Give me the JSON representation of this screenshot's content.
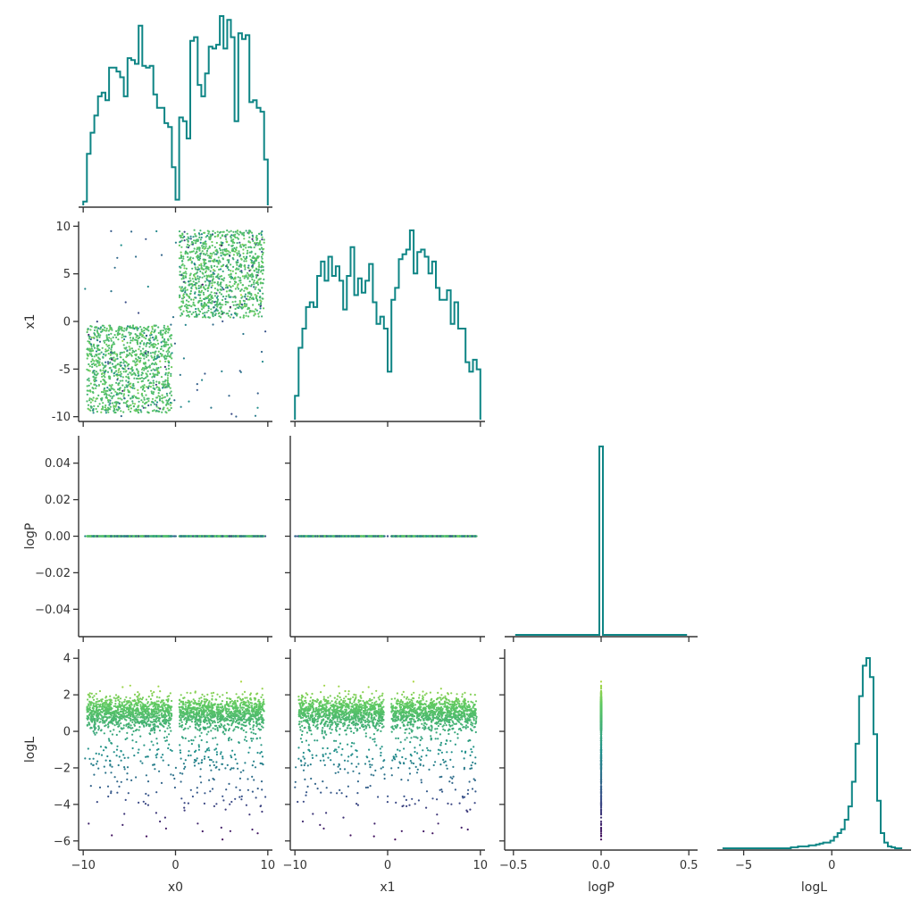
{
  "chart_data": {
    "type": "corner_plot",
    "variables": [
      "x0",
      "x1",
      "logP",
      "logL"
    ],
    "colors": {
      "histogram": "#0e8585",
      "colormap": [
        "#440154",
        "#3b528b",
        "#21918c",
        "#5ec962",
        "#fde725"
      ],
      "axis": "#333333"
    },
    "panels": [
      {
        "id": "hist-x0",
        "row": 0,
        "col": 0,
        "type": "hist",
        "variable": "x0",
        "xlim": [
          -10.5,
          10.5
        ],
        "xticks": [],
        "yticks": [],
        "bins": {
          "edges_range": [
            -10,
            10
          ],
          "count": 50,
          "heights": [
            0.02,
            0.27,
            0.38,
            0.47,
            0.57,
            0.59,
            0.55,
            0.72,
            0.72,
            0.7,
            0.67,
            0.57,
            0.77,
            0.76,
            0.74,
            0.94,
            0.73,
            0.72,
            0.73,
            0.58,
            0.51,
            0.51,
            0.43,
            0.41,
            0.2,
            0.03,
            0.46,
            0.44,
            0.35,
            0.86,
            0.88,
            0.63,
            0.57,
            0.69,
            0.83,
            0.82,
            0.84,
            0.99,
            0.82,
            0.97,
            0.88,
            0.44,
            0.9,
            0.87,
            0.89,
            0.54,
            0.55,
            0.51,
            0.49,
            0.24
          ]
        }
      },
      {
        "id": "scatter-x0-x1",
        "row": 1,
        "col": 0,
        "type": "scatter",
        "x": "x0",
        "y": "x1",
        "xlim": [
          -10.5,
          10.5
        ],
        "ylim": [
          -10.5,
          10.5
        ],
        "xticks": [],
        "yticks": [
          "-10",
          "-5",
          "0",
          "5",
          "10"
        ],
        "ylabel": "x1",
        "clusters": [
          {
            "xrange": [
              -9.6,
              -0.4
            ],
            "yrange": [
              -9.6,
              -0.4
            ],
            "n": 1100
          },
          {
            "xrange": [
              0.4,
              9.6
            ],
            "yrange": [
              0.4,
              9.6
            ],
            "n": 1100
          }
        ],
        "outliers": 70
      },
      {
        "id": "hist-x1",
        "row": 1,
        "col": 1,
        "type": "hist",
        "variable": "x1",
        "xlim": [
          -10.5,
          10.5
        ],
        "xticks": [],
        "yticks": [],
        "bins": {
          "edges_range": [
            -10,
            10
          ],
          "count": 50,
          "heights": [
            0.1,
            0.3,
            0.38,
            0.47,
            0.49,
            0.47,
            0.6,
            0.66,
            0.58,
            0.68,
            0.6,
            0.64,
            0.58,
            0.46,
            0.6,
            0.72,
            0.52,
            0.59,
            0.53,
            0.58,
            0.65,
            0.49,
            0.4,
            0.43,
            0.38,
            0.2,
            0.5,
            0.55,
            0.67,
            0.69,
            0.71,
            0.79,
            0.61,
            0.7,
            0.71,
            0.68,
            0.61,
            0.66,
            0.55,
            0.5,
            0.5,
            0.54,
            0.4,
            0.49,
            0.38,
            0.38,
            0.24,
            0.2,
            0.25,
            0.21
          ]
        }
      },
      {
        "id": "scatter-x0-logP",
        "row": 2,
        "col": 0,
        "type": "scatter",
        "x": "x0",
        "y": "logP",
        "xlim": [
          -10.5,
          10.5
        ],
        "ylim": [
          -0.055,
          0.055
        ],
        "xticks": [],
        "yticks": [
          "−0.04",
          "−0.02",
          "0.00",
          "0.02",
          "0.04"
        ],
        "ylabel": "logP"
      },
      {
        "id": "scatter-x1-logP",
        "row": 2,
        "col": 1,
        "type": "scatter",
        "x": "x1",
        "y": "logP",
        "xlim": [
          -10.5,
          10.5
        ],
        "ylim": [
          -0.055,
          0.055
        ],
        "xticks": [],
        "yticks": []
      },
      {
        "id": "hist-logP",
        "row": 2,
        "col": 2,
        "type": "hist",
        "variable": "logP",
        "xlim": [
          -0.55,
          0.55
        ],
        "xticks": [],
        "yticks": [],
        "spike_at": 0.0
      },
      {
        "id": "scatter-x0-logL",
        "row": 3,
        "col": 0,
        "type": "scatter",
        "x": "x0",
        "y": "logL",
        "xlim": [
          -10.5,
          10.5
        ],
        "ylim": [
          -6.5,
          4.5
        ],
        "xticks": [
          "−10",
          "0",
          "10"
        ],
        "yticks": [
          "−6",
          "−4",
          "−2",
          "0",
          "2",
          "4"
        ],
        "xlabel": "x0",
        "ylabel": "logL"
      },
      {
        "id": "scatter-x1-logL",
        "row": 3,
        "col": 1,
        "type": "scatter",
        "x": "x1",
        "y": "logL",
        "xlim": [
          -10.5,
          10.5
        ],
        "ylim": [
          -6.5,
          4.5
        ],
        "xticks": [
          "−10",
          "0",
          "10"
        ],
        "yticks": [],
        "xlabel": "x1"
      },
      {
        "id": "scatter-logP-logL",
        "row": 3,
        "col": 2,
        "type": "scatter",
        "x": "logP",
        "y": "logL",
        "xlim": [
          -0.55,
          0.55
        ],
        "ylim": [
          -6.5,
          4.5
        ],
        "xticks": [
          "−0.5",
          "0.0",
          "0.5"
        ],
        "yticks": [],
        "xlabel": "logP"
      },
      {
        "id": "hist-logL",
        "row": 3,
        "col": 3,
        "type": "hist",
        "variable": "logL",
        "xlim": [
          -6.5,
          4.5
        ],
        "xticks": [
          "−5",
          "0"
        ],
        "yticks": [],
        "xlabel": "logL",
        "bins": {
          "edges_range": [
            -6.2,
            4.0
          ],
          "count": 50,
          "heights": [
            0,
            0,
            0,
            0,
            0,
            0,
            0,
            0,
            0,
            0,
            0,
            0,
            0,
            0,
            0,
            0,
            0,
            0,
            0,
            0.005,
            0.005,
            0.01,
            0.01,
            0.01,
            0.015,
            0.015,
            0.02,
            0.025,
            0.03,
            0.03,
            0.04,
            0.06,
            0.08,
            0.1,
            0.15,
            0.22,
            0.35,
            0.55,
            0.8,
            0.96,
            1.0,
            0.9,
            0.6,
            0.25,
            0.08,
            0.03,
            0.01,
            0.005,
            0,
            0
          ]
        }
      }
    ]
  }
}
